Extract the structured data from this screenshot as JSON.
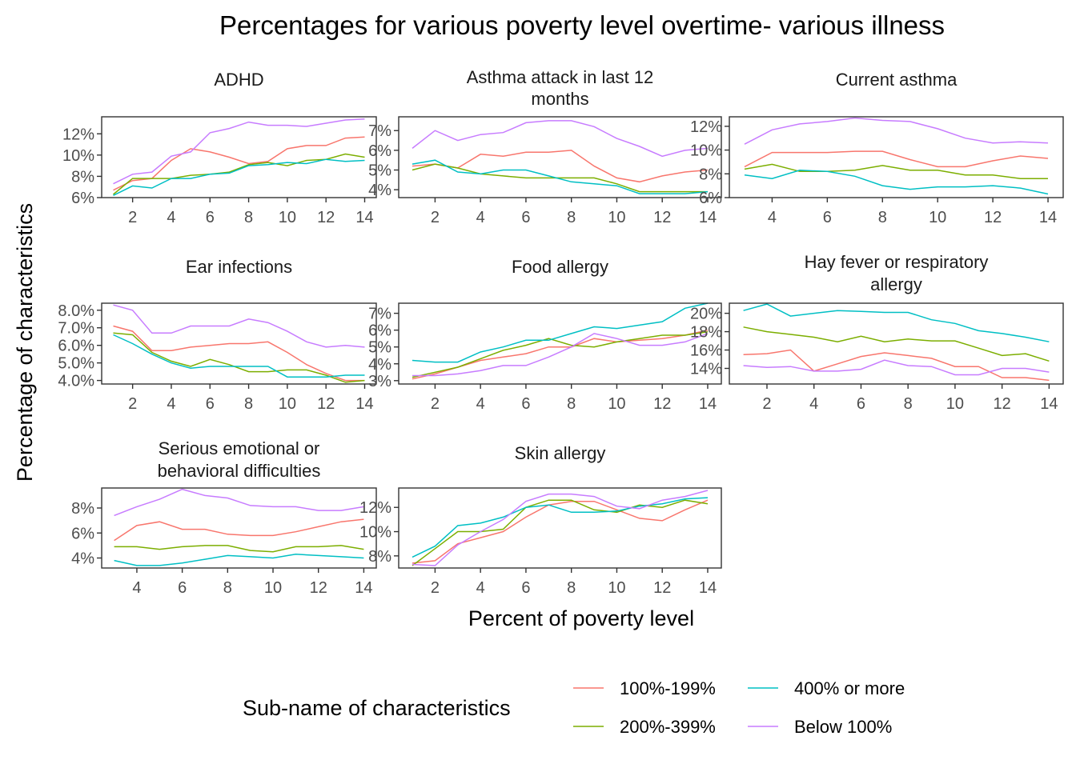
{
  "title": "Percentages for various poverty level overtime- various illness",
  "xlabel": "Percent of poverty level",
  "ylabel": "Percentage of characteristics",
  "legend": {
    "title": "Sub-name of characteristics",
    "entries": [
      {
        "name": "100%-199%",
        "color": "#F8766D"
      },
      {
        "name": "200%-399%",
        "color": "#7CAE00"
      },
      {
        "name": "400% or more",
        "color": "#00BFC4"
      },
      {
        "name": "Below 100%",
        "color": "#C77CFF"
      }
    ]
  },
  "chart_data": [
    {
      "type": "line",
      "title": "ADHD",
      "xlim": [
        0.4,
        14.6
      ],
      "ylim": [
        6.0,
        13.6
      ],
      "xticks": [
        2,
        4,
        6,
        8,
        10,
        12,
        14
      ],
      "yticks": [
        6,
        8,
        10,
        12
      ],
      "ytick_labels": [
        "6%",
        "8%",
        "10%",
        "12%"
      ],
      "x": [
        1,
        2,
        3,
        4,
        5,
        6,
        7,
        8,
        9,
        10,
        11,
        12,
        13,
        14
      ],
      "series": [
        {
          "name": "100%-199%",
          "values": [
            6.7,
            7.6,
            7.8,
            9.5,
            10.6,
            10.3,
            9.8,
            9.2,
            9.4,
            10.6,
            10.9,
            10.9,
            11.6,
            11.7
          ]
        },
        {
          "name": "200%-399%",
          "values": [
            6.3,
            7.8,
            7.8,
            7.8,
            8.1,
            8.2,
            8.4,
            9.1,
            9.3,
            9.0,
            9.5,
            9.6,
            10.1,
            9.8
          ]
        },
        {
          "name": "400% or more",
          "values": [
            6.2,
            7.1,
            6.9,
            7.8,
            7.8,
            8.2,
            8.3,
            9.0,
            9.1,
            9.3,
            9.2,
            9.6,
            9.4,
            9.5
          ]
        },
        {
          "name": "Below 100%",
          "values": [
            7.3,
            8.2,
            8.4,
            9.9,
            10.3,
            12.1,
            12.5,
            13.1,
            12.8,
            12.8,
            12.7,
            13.0,
            13.3,
            13.4
          ]
        }
      ]
    },
    {
      "type": "line",
      "title": "Asthma attack in last 12 months",
      "xlim": [
        0.4,
        14.6
      ],
      "ylim": [
        3.6,
        7.7
      ],
      "xticks": [
        2,
        4,
        6,
        8,
        10,
        12,
        14
      ],
      "yticks": [
        4,
        5,
        6,
        7
      ],
      "ytick_labels": [
        "4%",
        "5%",
        "6%",
        "7%"
      ],
      "x": [
        1,
        2,
        3,
        4,
        5,
        6,
        7,
        8,
        9,
        10,
        11,
        12,
        13,
        14
      ],
      "series": [
        {
          "name": "100%-199%",
          "values": [
            5.2,
            5.3,
            5.1,
            5.8,
            5.7,
            5.9,
            5.9,
            6.0,
            5.2,
            4.6,
            4.4,
            4.7,
            4.9,
            5.0
          ]
        },
        {
          "name": "200%-399%",
          "values": [
            5.0,
            5.3,
            5.1,
            4.8,
            4.7,
            4.6,
            4.6,
            4.6,
            4.6,
            4.3,
            3.9,
            3.9,
            3.9,
            3.9
          ]
        },
        {
          "name": "400% or more",
          "values": [
            5.3,
            5.5,
            4.9,
            4.8,
            5.0,
            5.0,
            4.7,
            4.4,
            4.3,
            4.2,
            3.8,
            3.8,
            3.8,
            3.9
          ]
        },
        {
          "name": "Below 100%",
          "values": [
            6.1,
            7.0,
            6.5,
            6.8,
            6.9,
            7.4,
            7.5,
            7.5,
            7.2,
            6.6,
            6.2,
            5.7,
            6.0,
            6.1
          ]
        }
      ]
    },
    {
      "type": "line",
      "title": "Current asthma",
      "xlim": [
        2.45,
        14.55
      ],
      "ylim": [
        6.0,
        12.8
      ],
      "xticks": [
        4,
        6,
        8,
        10,
        12,
        14
      ],
      "yticks": [
        6,
        8,
        10,
        12
      ],
      "ytick_labels": [
        "6%",
        "8%",
        "10%",
        "12%"
      ],
      "x": [
        3,
        4,
        5,
        6,
        7,
        8,
        9,
        10,
        11,
        12,
        13,
        14
      ],
      "series": [
        {
          "name": "100%-199%",
          "values": [
            8.6,
            9.8,
            9.8,
            9.8,
            9.9,
            9.9,
            9.2,
            8.6,
            8.6,
            9.1,
            9.5,
            9.3
          ]
        },
        {
          "name": "200%-399%",
          "values": [
            8.4,
            8.8,
            8.2,
            8.2,
            8.3,
            8.7,
            8.3,
            8.3,
            7.9,
            7.9,
            7.6,
            7.6
          ]
        },
        {
          "name": "400% or more",
          "values": [
            7.9,
            7.6,
            8.3,
            8.2,
            7.8,
            7.0,
            6.7,
            6.9,
            6.9,
            7.0,
            6.8,
            6.3
          ]
        },
        {
          "name": "Below 100%",
          "values": [
            10.5,
            11.7,
            12.2,
            12.4,
            12.7,
            12.5,
            12.4,
            11.8,
            11.0,
            10.6,
            10.7,
            10.6
          ]
        }
      ]
    },
    {
      "type": "line",
      "title": "Ear infections",
      "xlim": [
        0.4,
        14.6
      ],
      "ylim": [
        3.8,
        8.4
      ],
      "xticks": [
        2,
        4,
        6,
        8,
        10,
        12,
        14
      ],
      "yticks": [
        4,
        5,
        6,
        7,
        8
      ],
      "ytick_labels": [
        "4.0%",
        "5.0%",
        "6.0%",
        "7.0%",
        "8.0%"
      ],
      "x": [
        1,
        2,
        3,
        4,
        5,
        6,
        7,
        8,
        9,
        10,
        11,
        12,
        13,
        14
      ],
      "series": [
        {
          "name": "100%-199%",
          "values": [
            7.1,
            6.8,
            5.7,
            5.7,
            5.9,
            6.0,
            6.1,
            6.1,
            6.2,
            5.6,
            4.9,
            4.4,
            4.0,
            4.0
          ]
        },
        {
          "name": "200%-399%",
          "values": [
            6.7,
            6.6,
            5.6,
            5.1,
            4.8,
            5.2,
            4.9,
            4.5,
            4.5,
            4.6,
            4.6,
            4.3,
            3.9,
            4.0
          ]
        },
        {
          "name": "400% or more",
          "values": [
            6.6,
            6.1,
            5.5,
            5.0,
            4.7,
            4.8,
            4.8,
            4.8,
            4.8,
            4.2,
            4.2,
            4.2,
            4.3,
            4.3
          ]
        },
        {
          "name": "Below 100%",
          "values": [
            8.3,
            8.0,
            6.7,
            6.7,
            7.1,
            7.1,
            7.1,
            7.5,
            7.3,
            6.8,
            6.2,
            5.9,
            6.0,
            5.9
          ]
        }
      ]
    },
    {
      "type": "line",
      "title": "Food allergy",
      "xlim": [
        0.4,
        14.6
      ],
      "ylim": [
        2.8,
        7.6
      ],
      "xticks": [
        2,
        4,
        6,
        8,
        10,
        12,
        14
      ],
      "yticks": [
        3,
        4,
        5,
        6,
        7
      ],
      "ytick_labels": [
        "3%",
        "4%",
        "5%",
        "6%",
        "7%"
      ],
      "x": [
        1,
        2,
        3,
        4,
        5,
        6,
        7,
        8,
        9,
        10,
        11,
        12,
        13,
        14
      ],
      "series": [
        {
          "name": "100%-199%",
          "values": [
            3.1,
            3.4,
            3.8,
            4.2,
            4.4,
            4.6,
            5.0,
            5.0,
            5.5,
            5.3,
            5.4,
            5.5,
            5.7,
            6.0
          ]
        },
        {
          "name": "200%-399%",
          "values": [
            3.2,
            3.5,
            3.8,
            4.3,
            4.8,
            5.1,
            5.5,
            5.1,
            5.0,
            5.3,
            5.5,
            5.7,
            5.7,
            5.9
          ]
        },
        {
          "name": "400% or more",
          "values": [
            4.2,
            4.1,
            4.1,
            4.7,
            5.0,
            5.4,
            5.4,
            5.8,
            6.2,
            6.1,
            6.3,
            6.5,
            7.3,
            7.6
          ]
        },
        {
          "name": "Below 100%",
          "values": [
            3.3,
            3.3,
            3.4,
            3.6,
            3.9,
            3.9,
            4.4,
            5.0,
            5.8,
            5.5,
            5.1,
            5.1,
            5.3,
            5.8
          ]
        }
      ]
    },
    {
      "type": "line",
      "title": "Hay fever or respiratory allergy",
      "xlim": [
        0.4,
        14.6
      ],
      "ylim": [
        12.3,
        21.1
      ],
      "xticks": [
        2,
        4,
        6,
        8,
        10,
        12,
        14
      ],
      "yticks": [
        14,
        16,
        18,
        20
      ],
      "ytick_labels": [
        "14%",
        "16%",
        "18%",
        "20%"
      ],
      "x": [
        1,
        2,
        3,
        4,
        5,
        6,
        7,
        8,
        9,
        10,
        11,
        12,
        13,
        14
      ],
      "series": [
        {
          "name": "100%-199%",
          "values": [
            15.5,
            15.6,
            16.0,
            13.7,
            14.5,
            15.3,
            15.7,
            15.4,
            15.1,
            14.2,
            14.2,
            13.0,
            13.0,
            12.7
          ]
        },
        {
          "name": "200%-399%",
          "values": [
            18.5,
            18.0,
            17.7,
            17.4,
            16.9,
            17.5,
            16.9,
            17.2,
            17.0,
            17.0,
            16.2,
            15.4,
            15.6,
            14.8
          ]
        },
        {
          "name": "400% or more",
          "values": [
            20.3,
            21.0,
            19.7,
            20.0,
            20.3,
            20.2,
            20.1,
            20.1,
            19.3,
            18.9,
            18.1,
            17.8,
            17.4,
            16.9
          ]
        },
        {
          "name": "Below 100%",
          "values": [
            14.3,
            14.1,
            14.2,
            13.7,
            13.7,
            13.9,
            14.9,
            14.3,
            14.2,
            13.3,
            13.3,
            14.0,
            14.0,
            13.6
          ]
        }
      ]
    },
    {
      "type": "line",
      "title": "Serious emotional or behavioral difficulties",
      "xlim": [
        2.45,
        14.55
      ],
      "ylim": [
        3.2,
        9.6
      ],
      "xticks": [
        4,
        6,
        8,
        10,
        12,
        14
      ],
      "yticks": [
        4,
        6,
        8
      ],
      "ytick_labels": [
        "4%",
        "6%",
        "8%"
      ],
      "x": [
        3,
        4,
        5,
        6,
        7,
        8,
        9,
        10,
        11,
        12,
        13,
        14
      ],
      "series": [
        {
          "name": "100%-199%",
          "values": [
            5.4,
            6.6,
            6.9,
            6.3,
            6.3,
            5.9,
            5.8,
            5.8,
            6.1,
            6.5,
            6.9,
            7.1
          ]
        },
        {
          "name": "200%-399%",
          "values": [
            4.9,
            4.9,
            4.7,
            4.9,
            5.0,
            5.0,
            4.6,
            4.5,
            4.9,
            4.9,
            5.0,
            4.7
          ]
        },
        {
          "name": "400% or more",
          "values": [
            3.8,
            3.4,
            3.4,
            3.6,
            3.9,
            4.2,
            4.1,
            4.0,
            4.3,
            4.2,
            4.1,
            4.0
          ]
        },
        {
          "name": "Below 100%",
          "values": [
            7.4,
            8.1,
            8.7,
            9.5,
            9.0,
            8.8,
            8.2,
            8.1,
            8.1,
            7.8,
            7.8,
            8.1
          ]
        }
      ]
    },
    {
      "type": "line",
      "title": "Skin allergy",
      "xlim": [
        0.4,
        14.6
      ],
      "ylim": [
        7.0,
        13.6
      ],
      "xticks": [
        2,
        4,
        6,
        8,
        10,
        12,
        14
      ],
      "yticks": [
        8,
        10,
        12
      ],
      "ytick_labels": [
        "8%",
        "10%",
        "12%"
      ],
      "x": [
        1,
        2,
        3,
        4,
        5,
        6,
        7,
        8,
        9,
        10,
        11,
        12,
        13,
        14
      ],
      "series": [
        {
          "name": "100%-199%",
          "values": [
            7.4,
            7.6,
            9.0,
            9.5,
            10.0,
            11.2,
            12.2,
            12.5,
            12.5,
            11.8,
            11.1,
            10.9,
            11.8,
            12.6
          ]
        },
        {
          "name": "200%-399%",
          "values": [
            7.2,
            8.6,
            10.0,
            10.0,
            10.2,
            12.0,
            12.6,
            12.6,
            11.8,
            11.6,
            12.2,
            12.0,
            12.6,
            12.3
          ]
        },
        {
          "name": "400% or more",
          "values": [
            7.9,
            8.8,
            10.5,
            10.7,
            11.2,
            12.0,
            12.2,
            11.6,
            11.6,
            11.7,
            12.1,
            12.3,
            12.7,
            12.8
          ]
        },
        {
          "name": "Below 100%",
          "values": [
            7.3,
            7.2,
            8.9,
            10.0,
            11.0,
            12.5,
            13.1,
            13.1,
            12.9,
            12.1,
            11.9,
            12.6,
            12.9,
            13.4
          ]
        }
      ]
    }
  ]
}
